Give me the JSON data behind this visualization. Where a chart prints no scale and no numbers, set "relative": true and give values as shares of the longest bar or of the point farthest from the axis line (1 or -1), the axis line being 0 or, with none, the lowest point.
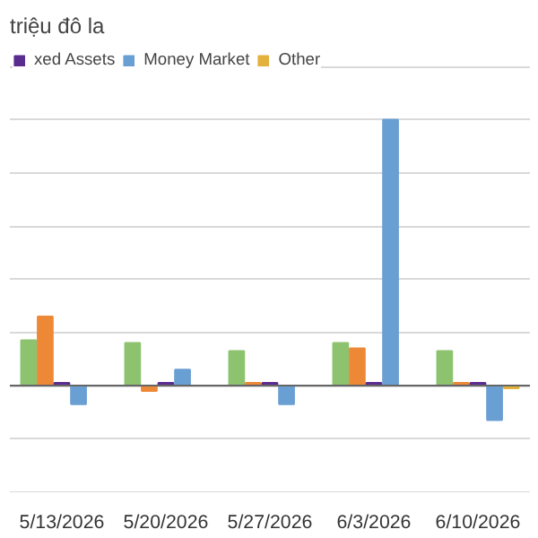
{
  "chart_data": {
    "type": "bar",
    "subtitle": "triệu đô la",
    "relative": true,
    "grid": "y",
    "legend": "top",
    "categories": [
      "5/13/2026",
      "5/20/2026",
      "5/27/2026",
      "6/3/2026",
      "6/10/2026"
    ],
    "series": [
      {
        "color": "#8dc26f",
        "values": [
          0.17,
          0.16,
          0.13,
          0.16,
          0.13
        ]
      },
      {
        "color": "#ed8936",
        "values": [
          0.26,
          -0.02,
          0.01,
          0.14,
          0.01
        ]
      },
      {
        "name": "xed Assets",
        "color": "#5b2c8f",
        "values": [
          0.01,
          0.01,
          0.01,
          0.01,
          0.01
        ]
      },
      {
        "name": "Money Market",
        "color": "#6a9fd4",
        "values": [
          -0.07,
          0.06,
          -0.07,
          1.0,
          -0.13
        ]
      },
      {
        "name": "Other",
        "color": "#e3b23c",
        "values": [
          0,
          0,
          0,
          0,
          -0.01
        ]
      }
    ]
  }
}
